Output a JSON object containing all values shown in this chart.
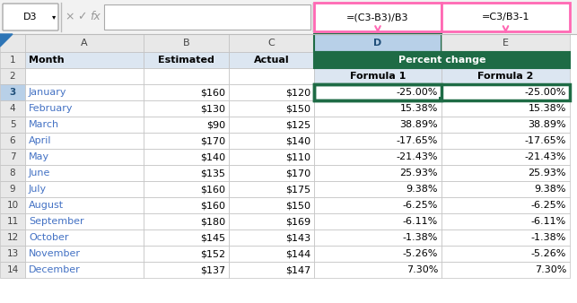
{
  "name_box": "D3",
  "formula1": "=(C3-B3)/B3",
  "formula2": "=C3/B3-1",
  "rows": [
    [
      "January",
      "$160",
      "$120",
      "-25.00%",
      "-25.00%"
    ],
    [
      "February",
      "$130",
      "$150",
      "15.38%",
      "15.38%"
    ],
    [
      "March",
      "$90",
      "$125",
      "38.89%",
      "38.89%"
    ],
    [
      "April",
      "$170",
      "$140",
      "-17.65%",
      "-17.65%"
    ],
    [
      "May",
      "$140",
      "$110",
      "-21.43%",
      "-21.43%"
    ],
    [
      "June",
      "$135",
      "$170",
      "25.93%",
      "25.93%"
    ],
    [
      "July",
      "$160",
      "$175",
      "9.38%",
      "9.38%"
    ],
    [
      "August",
      "$160",
      "$150",
      "-6.25%",
      "-6.25%"
    ],
    [
      "September",
      "$180",
      "$169",
      "-6.11%",
      "-6.11%"
    ],
    [
      "October",
      "$145",
      "$143",
      "-1.38%",
      "-1.38%"
    ],
    [
      "November",
      "$152",
      "$144",
      "-5.26%",
      "-5.26%"
    ],
    [
      "December",
      "$137",
      "$147",
      "7.30%",
      "7.30%"
    ]
  ],
  "bg_gray": "#e8e8e8",
  "bg_light_blue": "#dce6f1",
  "bg_selected_col_header": "#b8d0e8",
  "bg_green_dark": "#1e6b45",
  "bg_formula_header": "#d9e8f0",
  "text_blue_month": "#4472c4",
  "text_selected_header": "#1f4e79",
  "arrow_pink": "#ff69b4",
  "border_green_dark": "#1e6b45",
  "border_light": "#c0c0c0",
  "fig_bg": "#f2f2f2"
}
